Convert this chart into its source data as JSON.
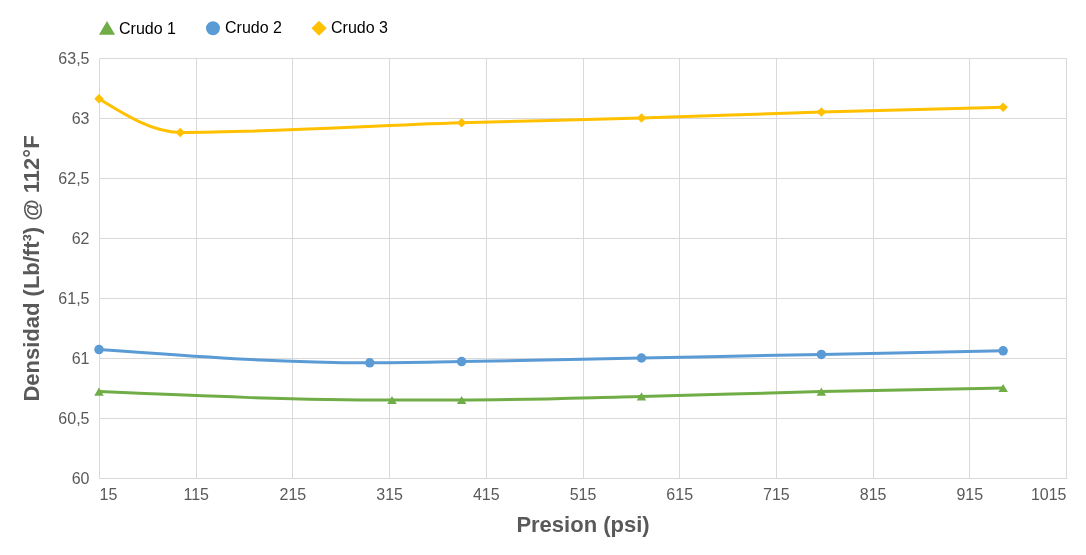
{
  "chart_data": {
    "type": "line",
    "xlabel": "Presion (psi)",
    "ylabel": "Densidad (Lb/ft³) @ 112°F",
    "xlim": [
      15,
      1015
    ],
    "xticks": [
      15,
      115,
      215,
      315,
      415,
      515,
      615,
      715,
      815,
      915,
      1015
    ],
    "ylim": [
      60,
      63.5
    ],
    "yticks": [
      60,
      {
        "value": 60.5,
        "label": "60,5"
      },
      61,
      {
        "value": 61.5,
        "label": "61,5"
      },
      62,
      {
        "value": 62.5,
        "label": "62,5"
      },
      63,
      {
        "value": 63.5,
        "label": "63,5"
      }
    ],
    "grid": true,
    "legend": "top",
    "series": [
      {
        "name": "Crudo 1",
        "color": "#70ad47",
        "marker": "triangle",
        "x": [
          15,
          318,
          390,
          576,
          762,
          950
        ],
        "values": [
          60.72,
          60.65,
          60.65,
          60.68,
          60.72,
          60.75
        ]
      },
      {
        "name": "Crudo 2",
        "color": "#5b9bd5",
        "marker": "circle",
        "x": [
          15,
          295,
          390,
          576,
          762,
          950
        ],
        "values": [
          61.07,
          60.96,
          60.97,
          61.0,
          61.03,
          61.06
        ]
      },
      {
        "name": "Crudo 3",
        "color": "#ffc000",
        "marker": "diamond",
        "x": [
          15,
          99,
          390,
          576,
          762,
          950
        ],
        "values": [
          63.16,
          62.88,
          62.96,
          63.0,
          63.05,
          63.09
        ]
      }
    ]
  }
}
